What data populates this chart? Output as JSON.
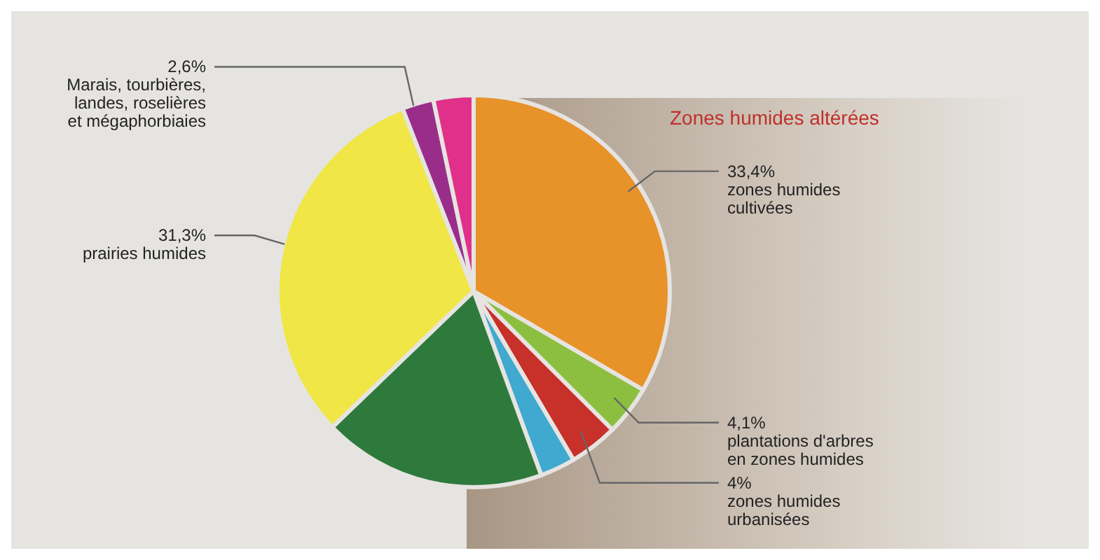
{
  "chart_data": {
    "type": "pie",
    "categories": [
      "zones humides cultivées",
      "plantations d'arbres en zones humides",
      "zones humides urbanisées",
      null,
      null,
      "prairies humides",
      "Marais, tourbières, landes, roselières et mégaphorbiaies",
      null
    ],
    "values": [
      33.4,
      4.1,
      4,
      2.9,
      18.4,
      31.3,
      2.6,
      3.3
    ],
    "value_labels": [
      "33,4%",
      "4,1%",
      "4%",
      null,
      null,
      "31,3%",
      "2,6%",
      null
    ],
    "colors": [
      "#e8922a",
      "#8cbf3f",
      "#c8302a",
      "#3fa9d0",
      "#2e7a3c",
      "#f0e645",
      "#9b2d8a",
      "#e0308a"
    ],
    "annotations": [
      "Zones humides altérées"
    ]
  }
}
